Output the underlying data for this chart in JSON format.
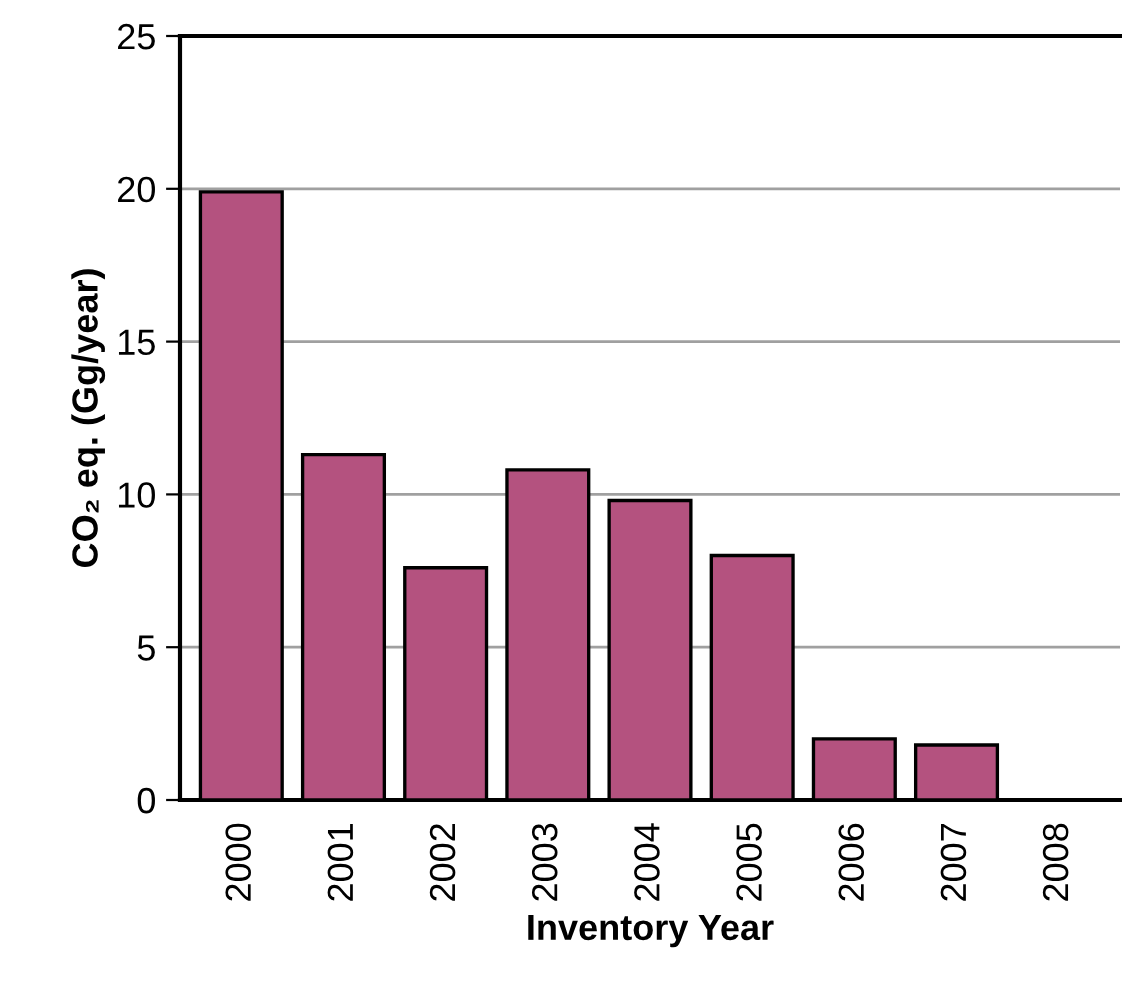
{
  "chart_data": {
    "type": "bar",
    "xlabel": "Inventory Year",
    "ylabel": "CO₂ eq. (Gg/year)",
    "categories": [
      "2000",
      "2001",
      "2002",
      "2003",
      "2004",
      "2005",
      "2006",
      "2007",
      "2008"
    ],
    "values": [
      19.9,
      11.3,
      7.6,
      10.8,
      9.8,
      8.0,
      2.0,
      1.8,
      null
    ],
    "color": "#b4527f",
    "ylim": [
      0,
      25
    ],
    "yticks": [
      0,
      5,
      10,
      15,
      20,
      25
    ],
    "grid": "y"
  }
}
